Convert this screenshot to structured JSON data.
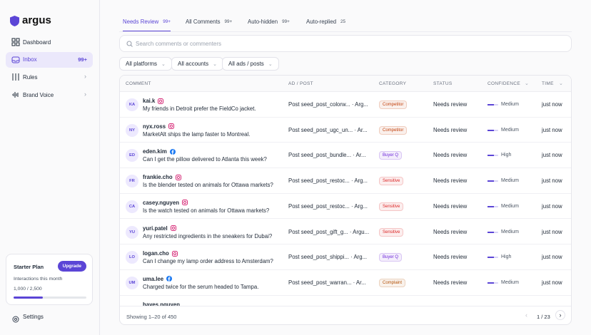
{
  "sidebar": {
    "logo": "argus",
    "nav": [
      {
        "label": "Dashboard"
      },
      {
        "label": "Inbox",
        "badge": "99+"
      },
      {
        "label": "Rules"
      },
      {
        "label": "Brand Voice"
      }
    ],
    "plan": {
      "title": "Starter Plan",
      "button": "Upgrade",
      "caption": "Interactions this month",
      "usage_label": "1,000 / 2,500",
      "used": 1000,
      "limit": 2500
    },
    "settings": "Settings"
  },
  "tabs": [
    {
      "label": "Needs Review",
      "count": "99+"
    },
    {
      "label": "All Comments",
      "count": "99+"
    },
    {
      "label": "Auto-hidden",
      "count": "99+"
    },
    {
      "label": "Auto-replied",
      "count": 25
    }
  ],
  "search": {
    "placeholder": "Search comments or commenters"
  },
  "filters": [
    "All platforms",
    "All accounts",
    "All ads / posts"
  ],
  "table": {
    "columns": [
      "COMMENT",
      "AD / POST",
      "CATEGORY",
      "STATUS",
      "CONFIDENCE",
      "TIME"
    ],
    "rows": [
      {
        "initials": "KA",
        "user": "kai.k",
        "platform": "instagram",
        "text": "My friends in Detroit prefer the FieldCo jacket.",
        "post": "Post seed_post_colorw... · Arg...",
        "category": "Competitor",
        "category_color": "#c2410c",
        "status": "Needs review",
        "confidence": "Medium",
        "time": "just now"
      },
      {
        "initials": "NY",
        "user": "nyx.ross",
        "platform": "instagram",
        "text": "MarketAlt ships the lamp faster to Montreal.",
        "post": "Post seed_post_ugc_un... · Ar...",
        "category": "Competitor",
        "category_color": "#c2410c",
        "status": "Needs review",
        "confidence": "Medium",
        "time": "just now"
      },
      {
        "initials": "ED",
        "user": "eden.kim",
        "platform": "facebook",
        "text": "Can I get the pillow delivered to Atlanta this week?",
        "post": "Post seed_post_bundle... · Ar...",
        "category": "Buyer Q",
        "category_color": "#6d28d9",
        "status": "Needs review",
        "confidence": "High",
        "time": "just now"
      },
      {
        "initials": "FR",
        "user": "frankie.cho",
        "platform": "instagram",
        "text": "Is the blender tested on animals for Ottawa markets?",
        "post": "Post seed_post_restoc... · Arg...",
        "category": "Sensitive",
        "category_color": "#dc2626",
        "status": "Needs review",
        "confidence": "Medium",
        "time": "just now"
      },
      {
        "initials": "CA",
        "user": "casey.nguyen",
        "platform": "instagram",
        "text": "Is the watch tested on animals for Ottawa markets?",
        "post": "Post seed_post_restoc... · Arg...",
        "category": "Sensitive",
        "category_color": "#dc2626",
        "status": "Needs review",
        "confidence": "Medium",
        "time": "just now"
      },
      {
        "initials": "YU",
        "user": "yuri.patel",
        "platform": "instagram",
        "text": "Any restricted ingredients in the sneakers for Dubai?",
        "post": "Post seed_post_gift_g... · Argu...",
        "category": "Sensitive",
        "category_color": "#dc2626",
        "status": "Needs review",
        "confidence": "Medium",
        "time": "just now"
      },
      {
        "initials": "LO",
        "user": "logan.cho",
        "platform": "instagram",
        "text": "Can I change my lamp order address to Amsterdam?",
        "post": "Post seed_post_shippi... · Arg...",
        "category": "Buyer Q",
        "category_color": "#6d28d9",
        "status": "Needs review",
        "confidence": "High",
        "time": "just now"
      },
      {
        "initials": "UM",
        "user": "uma.lee",
        "platform": "facebook",
        "text": "Charged twice for the serum headed to Tampa.",
        "post": "Post seed_post_warran... · Ar...",
        "category": "Complaint",
        "category_color": "#b45309",
        "status": "Needs review",
        "confidence": "Medium",
        "time": "just now"
      },
      {
        "user": "hayes.nguyen"
      }
    ]
  },
  "footer": {
    "showing": "Showing 1–20 of 450",
    "page": "1 / 23"
  }
}
